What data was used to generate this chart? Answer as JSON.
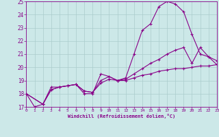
{
  "xlabel": "Windchill (Refroidissement éolien,°C)",
  "bg_color": "#cce8e8",
  "grid_color": "#aacccc",
  "line_color": "#880088",
  "xlim": [
    0,
    23
  ],
  "ylim": [
    17,
    25
  ],
  "xticks": [
    0,
    1,
    2,
    3,
    4,
    5,
    6,
    7,
    8,
    9,
    10,
    11,
    12,
    13,
    14,
    15,
    16,
    17,
    18,
    19,
    20,
    21,
    22,
    23
  ],
  "yticks": [
    17,
    18,
    19,
    20,
    21,
    22,
    23,
    24,
    25
  ],
  "line1_x": [
    0,
    1,
    2,
    3,
    4,
    5,
    6,
    7,
    8,
    9,
    10,
    11,
    12,
    13,
    14,
    15,
    16,
    17,
    18,
    19,
    20,
    21,
    22,
    23
  ],
  "line1_y": [
    18.0,
    17.0,
    17.2,
    18.5,
    18.5,
    18.6,
    18.7,
    18.0,
    18.0,
    19.5,
    19.3,
    19.0,
    19.2,
    21.0,
    22.8,
    23.3,
    24.6,
    25.0,
    24.8,
    24.2,
    22.5,
    21.0,
    20.8,
    20.5
  ],
  "line2_x": [
    0,
    2,
    3,
    4,
    5,
    6,
    7,
    8,
    9,
    10,
    11,
    12,
    13,
    14,
    15,
    16,
    17,
    18,
    19,
    20,
    21,
    22,
    23
  ],
  "line2_y": [
    18.0,
    17.2,
    18.3,
    18.5,
    18.6,
    18.7,
    18.2,
    18.1,
    19.0,
    19.3,
    19.0,
    19.1,
    19.5,
    19.9,
    20.3,
    20.6,
    21.0,
    21.3,
    21.5,
    20.3,
    21.5,
    20.8,
    20.2
  ],
  "line3_x": [
    0,
    2,
    3,
    4,
    5,
    6,
    7,
    8,
    9,
    10,
    11,
    12,
    13,
    14,
    15,
    16,
    17,
    18,
    19,
    20,
    21,
    22,
    23
  ],
  "line3_y": [
    18.0,
    17.2,
    18.3,
    18.5,
    18.6,
    18.7,
    18.2,
    18.1,
    18.8,
    19.1,
    19.0,
    19.0,
    19.2,
    19.4,
    19.5,
    19.7,
    19.8,
    19.9,
    19.9,
    20.0,
    20.1,
    20.1,
    20.2
  ]
}
